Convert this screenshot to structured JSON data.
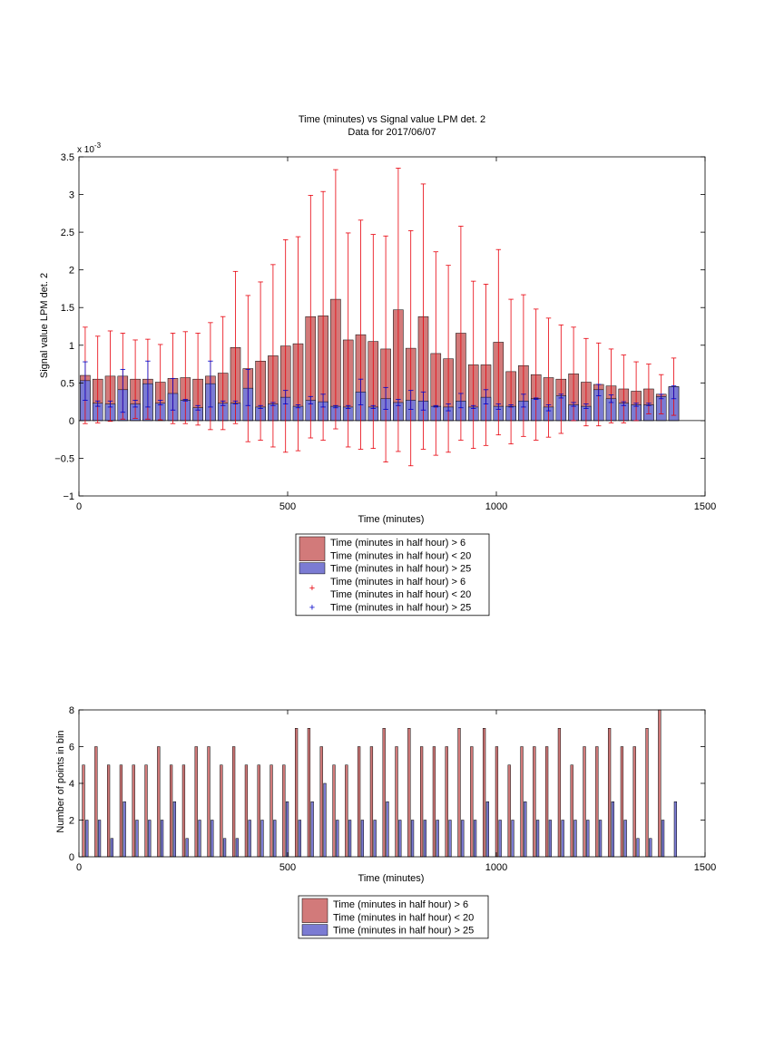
{
  "top": {
    "title_line1": "Time (minutes) vs Signal value LPM det. 2",
    "title_line2": "Data for 2017/06/07",
    "xlabel": "Time (minutes)",
    "ylabel": "Signal value LPM det. 2",
    "exponent_base": "x 10",
    "exponent_power": "-3",
    "xlim": [
      0,
      1500
    ],
    "ylim": [
      -1,
      3.5
    ],
    "xticks": [
      0,
      500,
      1000,
      1500
    ],
    "yticks": [
      -1,
      -0.5,
      0,
      0.5,
      1,
      1.5,
      2,
      2.5,
      3,
      3.5
    ],
    "ytick_labels": [
      "−1",
      "−0.5",
      "0",
      "0.5",
      "1",
      "1.5",
      "2",
      "2.5",
      "3",
      "3.5"
    ],
    "legend": [
      {
        "lines": [
          "Time (minutes in half hour) > 6",
          "Time (minutes in half hour) < 20"
        ],
        "kind": "bar",
        "color": "#d27a7a"
      },
      {
        "lines": [
          "Time (minutes in half hour) > 25"
        ],
        "kind": "bar",
        "color": "#7b7bd3"
      },
      {
        "lines": [
          "Time (minutes in half hour) > 6",
          "Time (minutes in half hour) < 20"
        ],
        "kind": "plus",
        "color": "#e8000b"
      },
      {
        "lines": [
          "Time (minutes in half hour) > 25"
        ],
        "kind": "plus",
        "color": "#0000c8"
      }
    ]
  },
  "bottom": {
    "xlabel": "Time (minutes)",
    "ylabel": "Number of points in bin",
    "xlim": [
      0,
      1500
    ],
    "ylim": [
      0,
      8
    ],
    "xticks": [
      0,
      500,
      1000,
      1500
    ],
    "yticks": [
      0,
      2,
      4,
      6,
      8
    ],
    "legend": [
      {
        "lines": [
          "Time (minutes in half hour) > 6",
          "Time (minutes in half hour) < 20"
        ],
        "kind": "bar",
        "color": "#d27a7a"
      },
      {
        "lines": [
          "Time (minutes in half hour) > 25"
        ],
        "kind": "bar",
        "color": "#7b7bd3"
      }
    ]
  },
  "colors": {
    "red_bar": "#d27a7a",
    "blue_bar": "#7b7bd3",
    "red_err": "#e8000b",
    "blue_err": "#0000c8"
  },
  "chart_data": [
    {
      "type": "bar",
      "x_units": "minutes",
      "y_scale_note": "values shown x 10^-3",
      "x": [
        15,
        45,
        75,
        105,
        135,
        165,
        195,
        225,
        255,
        285,
        315,
        345,
        375,
        405,
        435,
        465,
        495,
        525,
        555,
        585,
        615,
        645,
        675,
        705,
        735,
        765,
        795,
        825,
        855,
        885,
        915,
        945,
        975,
        1005,
        1035,
        1065,
        1095,
        1125,
        1155,
        1185,
        1215,
        1245,
        1275,
        1305,
        1335,
        1365,
        1395,
        1425
      ],
      "series": [
        {
          "name": "Time (minutes in half hour) > 6 , < 20",
          "values": [
            0.6,
            0.55,
            0.59,
            0.59,
            0.55,
            0.55,
            0.51,
            0.56,
            0.57,
            0.55,
            0.59,
            0.63,
            0.97,
            0.69,
            0.79,
            0.86,
            0.99,
            1.02,
            1.38,
            1.39,
            1.61,
            1.07,
            1.14,
            1.05,
            0.95,
            1.47,
            0.96,
            1.38,
            0.89,
            0.82,
            1.16,
            0.74,
            0.74,
            1.04,
            0.65,
            0.73,
            0.61,
            0.57,
            0.55,
            0.62,
            0.51,
            0.48,
            0.46,
            0.42,
            0.39,
            0.42,
            0.35,
            0.45
          ],
          "err_upper": [
            1.24,
            1.12,
            1.19,
            1.16,
            1.07,
            1.08,
            1.01,
            1.16,
            1.18,
            1.16,
            1.3,
            1.38,
            1.98,
            1.66,
            1.84,
            2.07,
            2.4,
            2.44,
            2.99,
            3.04,
            3.33,
            2.49,
            2.66,
            2.47,
            2.45,
            3.35,
            2.52,
            3.14,
            2.24,
            2.06,
            2.58,
            1.85,
            1.81,
            2.27,
            1.61,
            1.67,
            1.48,
            1.36,
            1.27,
            1.24,
            1.09,
            1.03,
            0.95,
            0.87,
            0.78,
            0.75,
            0.61,
            0.83
          ],
          "err_lower": [
            -0.04,
            -0.03,
            -0.01,
            0.02,
            0.03,
            0.02,
            0.01,
            -0.04,
            -0.04,
            -0.06,
            -0.12,
            -0.12,
            -0.04,
            -0.28,
            -0.26,
            -0.35,
            -0.42,
            -0.4,
            -0.23,
            -0.26,
            -0.11,
            -0.35,
            -0.38,
            -0.37,
            -0.55,
            -0.41,
            -0.6,
            -0.38,
            -0.46,
            -0.42,
            -0.26,
            -0.37,
            -0.33,
            -0.19,
            -0.31,
            -0.21,
            -0.26,
            -0.22,
            -0.17,
            0.0,
            -0.07,
            -0.07,
            -0.03,
            -0.03,
            0.0,
            0.09,
            0.09,
            0.07
          ]
        },
        {
          "name": "Time (minutes in half hour) > 25",
          "values": [
            0.53,
            0.23,
            0.22,
            0.41,
            0.22,
            0.49,
            0.23,
            0.36,
            0.27,
            0.17,
            0.49,
            0.23,
            0.23,
            0.43,
            0.18,
            0.22,
            0.31,
            0.19,
            0.27,
            0.25,
            0.19,
            0.18,
            0.38,
            0.18,
            0.29,
            0.24,
            0.27,
            0.26,
            0.19,
            0.18,
            0.26,
            0.18,
            0.31,
            0.19,
            0.19,
            0.26,
            0.29,
            0.18,
            0.33,
            0.21,
            0.19,
            0.41,
            0.29,
            0.23,
            0.21,
            0.21,
            0.32,
            0.45
          ],
          "err_upper": [
            0.78,
            0.26,
            0.26,
            0.68,
            0.27,
            0.79,
            0.27,
            0.56,
            0.28,
            0.2,
            0.79,
            0.26,
            0.26,
            0.68,
            0.2,
            0.24,
            0.4,
            0.21,
            0.32,
            0.35,
            0.2,
            0.2,
            0.55,
            0.2,
            0.44,
            0.28,
            0.4,
            0.38,
            0.2,
            0.22,
            0.36,
            0.2,
            0.41,
            0.22,
            0.21,
            0.35,
            0.3,
            0.21,
            0.35,
            0.24,
            0.22,
            0.48,
            0.34,
            0.25,
            0.23,
            0.23,
            0.35,
            0.46
          ],
          "err_lower": [
            0.27,
            0.19,
            0.18,
            0.11,
            0.18,
            0.18,
            0.21,
            0.14,
            0.26,
            0.14,
            0.18,
            0.2,
            0.22,
            0.2,
            0.16,
            0.2,
            0.22,
            0.17,
            0.22,
            0.18,
            0.17,
            0.16,
            0.21,
            0.16,
            0.15,
            0.2,
            0.15,
            0.14,
            0.18,
            0.13,
            0.17,
            0.16,
            0.22,
            0.15,
            0.18,
            0.18,
            0.28,
            0.13,
            0.3,
            0.19,
            0.16,
            0.33,
            0.24,
            0.2,
            0.19,
            0.2,
            0.29,
            0.29
          ]
        }
      ]
    },
    {
      "type": "bar",
      "x_units": "minutes",
      "x": [
        15,
        45,
        75,
        105,
        135,
        165,
        195,
        225,
        255,
        285,
        315,
        345,
        375,
        405,
        435,
        465,
        495,
        525,
        555,
        585,
        615,
        645,
        675,
        705,
        735,
        765,
        795,
        825,
        855,
        885,
        915,
        945,
        975,
        1005,
        1035,
        1065,
        1095,
        1125,
        1155,
        1185,
        1215,
        1245,
        1275,
        1305,
        1335,
        1365,
        1395,
        1425
      ],
      "series": [
        {
          "name": "Time (minutes in half hour) > 6 , < 20",
          "values": [
            5,
            6,
            5,
            5,
            5,
            5,
            6,
            5,
            5,
            6,
            6,
            5,
            6,
            5,
            5,
            5,
            5,
            7,
            7,
            6,
            5,
            5,
            6,
            6,
            7,
            6,
            7,
            6,
            6,
            6,
            7,
            6,
            7,
            6,
            5,
            6,
            6,
            6,
            7,
            5,
            6,
            6,
            7,
            6,
            6,
            7,
            8,
            0
          ]
        },
        {
          "name": "Time (minutes in half hour) > 25",
          "values": [
            2,
            2,
            1,
            3,
            2,
            2,
            2,
            3,
            1,
            2,
            2,
            1,
            1,
            2,
            2,
            2,
            3,
            2,
            3,
            4,
            2,
            2,
            2,
            2,
            3,
            2,
            2,
            2,
            2,
            2,
            2,
            2,
            3,
            2,
            2,
            3,
            2,
            2,
            2,
            2,
            2,
            2,
            3,
            2,
            1,
            1,
            2,
            3
          ]
        }
      ]
    }
  ]
}
